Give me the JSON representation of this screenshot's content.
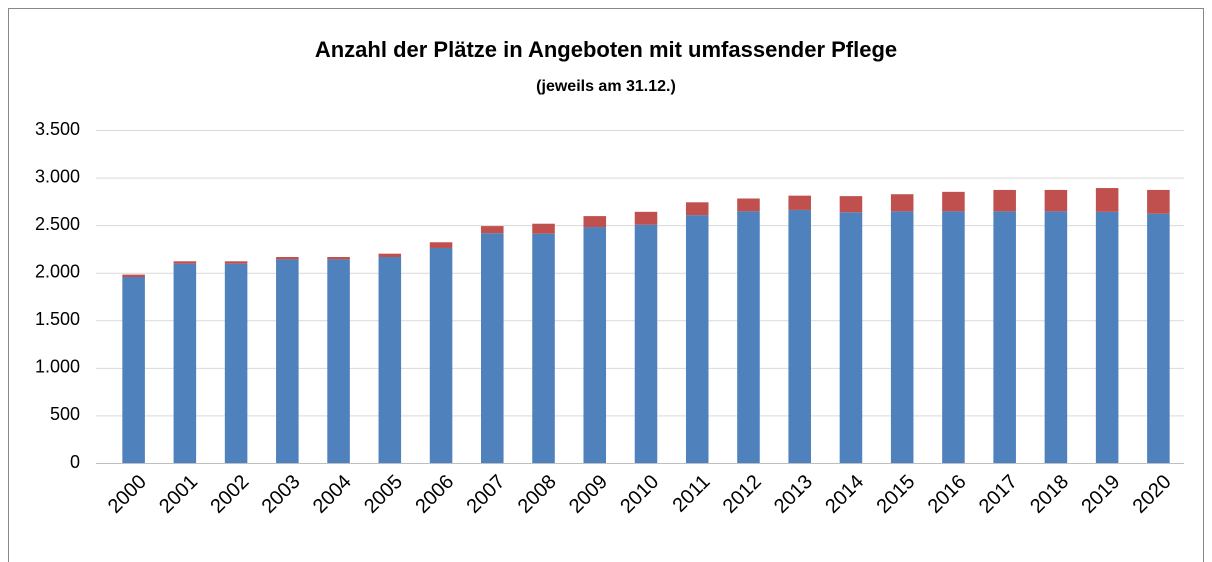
{
  "chart_data": {
    "type": "stacked_bar",
    "title": "Anzahl der Plätze in Angeboten mit umfassender Pflege",
    "subtitle": "(jeweils am 31.12.)",
    "categories": [
      "2000",
      "2001",
      "2002",
      "2003",
      "2004",
      "2005",
      "2006",
      "2007",
      "2008",
      "2009",
      "2010",
      "2011",
      "2012",
      "2013",
      "2014",
      "2015",
      "2016",
      "2017",
      "2018",
      "2019",
      "2020"
    ],
    "series": [
      {
        "color": "#4f81bd",
        "values": [
          1955,
          2095,
          2095,
          2140,
          2140,
          2165,
          2260,
          2415,
          2410,
          2480,
          2505,
          2605,
          2645,
          2660,
          2635,
          2645,
          2645,
          2645,
          2645,
          2640,
          2620
        ]
      },
      {
        "color": "#c0504d",
        "values": [
          25,
          25,
          25,
          25,
          25,
          35,
          60,
          75,
          105,
          115,
          135,
          135,
          135,
          150,
          170,
          180,
          205,
          225,
          225,
          250,
          250
        ]
      }
    ],
    "ylim": [
      0,
      3500
    ],
    "yticks": [
      0,
      500,
      {
        "value": 1000,
        "label": "1.000"
      },
      {
        "value": 1500,
        "label": "1.500"
      },
      {
        "value": 2000,
        "label": "2.000"
      },
      {
        "value": 2500,
        "label": "2.500"
      },
      {
        "value": 3000,
        "label": "3.000"
      },
      {
        "value": 3500,
        "label": "3.500"
      }
    ],
    "grid": true
  }
}
